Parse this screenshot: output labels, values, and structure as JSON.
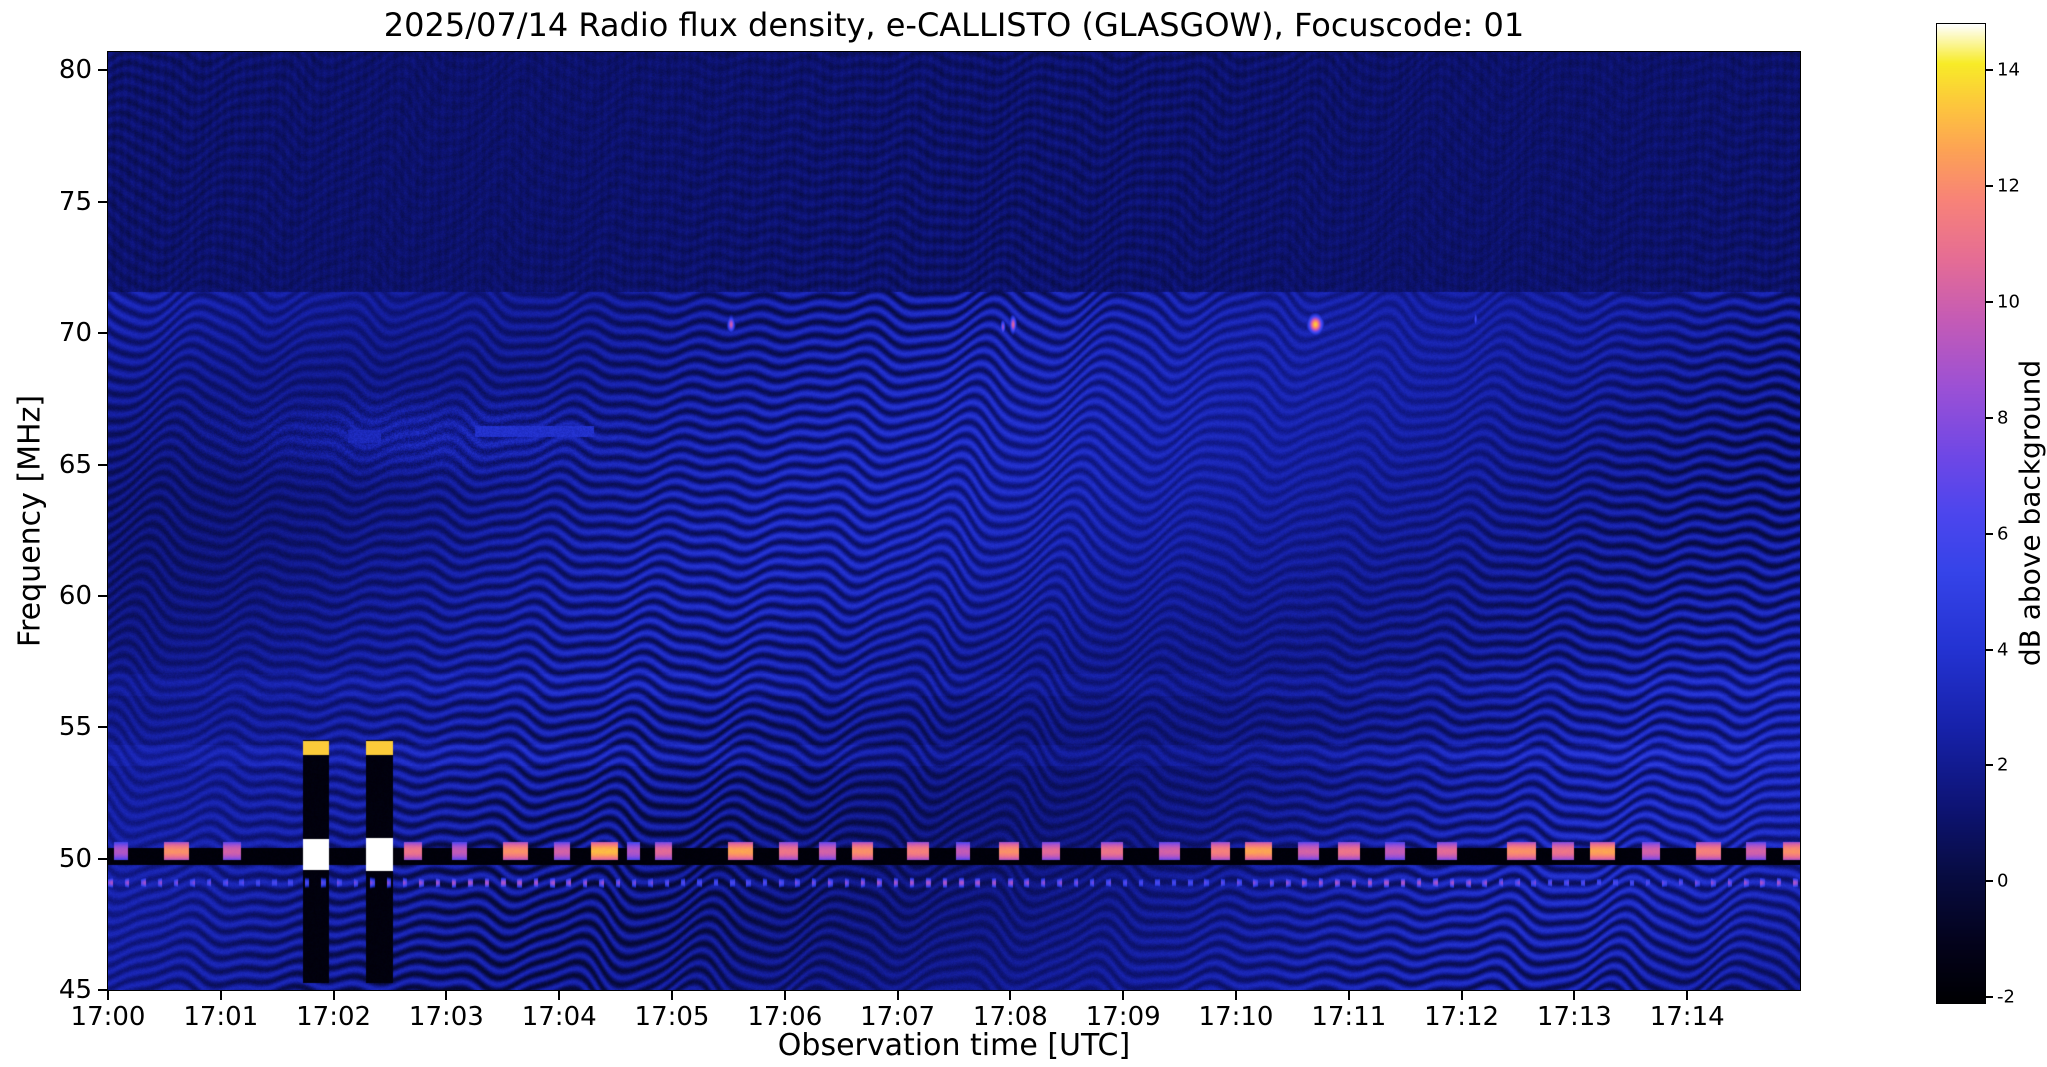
{
  "chart_data": {
    "type": "heatmap",
    "title": "2025/07/14  Radio flux density, e-CALLISTO (GLASGOW), Focuscode: 01",
    "xlabel": "Observation time [UTC]",
    "ylabel": "Frequency [MHz]",
    "x_tick_labels": [
      "17:00",
      "17:01",
      "17:02",
      "17:03",
      "17:04",
      "17:05",
      "17:06",
      "17:07",
      "17:08",
      "17:09",
      "17:10",
      "17:11",
      "17:12",
      "17:13",
      "17:14"
    ],
    "x_tick_minutes": [
      0,
      1,
      2,
      3,
      4,
      5,
      6,
      7,
      8,
      9,
      10,
      11,
      12,
      13,
      14
    ],
    "x_range_minutes": [
      0,
      15
    ],
    "y_ticks": [
      45,
      50,
      55,
      60,
      65,
      70,
      75,
      80
    ],
    "y_range_mhz": [
      45,
      80.7
    ],
    "y_axis_direction": "frequency increases upward",
    "grid": false,
    "colorbar": {
      "label": "dB above background",
      "ticks": [
        -2,
        0,
        2,
        4,
        6,
        8,
        10,
        12,
        14
      ],
      "vmin": -2.1,
      "vmax": 14.8
    },
    "colormap_stops": [
      [
        0.0,
        "#000003"
      ],
      [
        0.06,
        "#04031c"
      ],
      [
        0.13,
        "#080c42"
      ],
      [
        0.2,
        "#0e1475"
      ],
      [
        0.28,
        "#1722aa"
      ],
      [
        0.36,
        "#2433d2"
      ],
      [
        0.44,
        "#3644e9"
      ],
      [
        0.5,
        "#4d46ee"
      ],
      [
        0.56,
        "#7048e6"
      ],
      [
        0.63,
        "#9d51d5"
      ],
      [
        0.7,
        "#c65cb5"
      ],
      [
        0.76,
        "#e66d95"
      ],
      [
        0.82,
        "#f88379"
      ],
      [
        0.87,
        "#fda256"
      ],
      [
        0.92,
        "#fdc93c"
      ],
      [
        0.96,
        "#f8ec28"
      ],
      [
        1.0,
        "#ffffff"
      ]
    ],
    "features": {
      "background_level_db": 1.9,
      "fringe_amplitude_db": 1.5,
      "upper_band_start_mhz": 71.6,
      "upper_band_level_db": 1.05,
      "light_bands": [
        [
          53.55,
          54.35,
          0.5
        ],
        [
          56.2,
          57.05,
          0.35
        ]
      ],
      "haze_66mhz": {
        "x_center": 2.7,
        "f_center": 66.1,
        "x_radius": 1.4,
        "f_radius": 1.2,
        "boost_db": 1.0
      },
      "streak_66mhz": {
        "x_min": 3.25,
        "x_max": 4.3,
        "f_low": 66.05,
        "f_high": 66.5,
        "level_db": 3.8
      },
      "spot_66mhz": {
        "x_min": 2.12,
        "x_max": 2.42,
        "f_low": 65.85,
        "f_high": 66.35,
        "level_db": 3.2
      },
      "rfi_channel": {
        "f_low": 49.78,
        "f_high": 50.42,
        "level_db": -1.9,
        "blocks_f_low": 49.98,
        "blocks_f_high": 50.65,
        "blocks_f_center": 50.3
      },
      "bright_blocks_50mhz": [
        [
          0.05,
          0.18,
          9
        ],
        [
          0.5,
          0.72,
          12
        ],
        [
          1.02,
          1.18,
          10
        ],
        [
          2.62,
          2.78,
          11
        ],
        [
          3.05,
          3.18,
          9.5
        ],
        [
          3.5,
          3.72,
          12
        ],
        [
          3.95,
          4.1,
          10
        ],
        [
          4.28,
          4.52,
          13
        ],
        [
          4.6,
          4.72,
          9
        ],
        [
          4.85,
          5.0,
          10.5
        ],
        [
          5.5,
          5.72,
          12.5
        ],
        [
          5.95,
          6.12,
          11
        ],
        [
          6.3,
          6.45,
          10
        ],
        [
          6.6,
          6.78,
          12
        ],
        [
          7.08,
          7.28,
          11.5
        ],
        [
          7.52,
          7.64,
          9.5
        ],
        [
          7.9,
          8.08,
          12
        ],
        [
          8.28,
          8.44,
          10.5
        ],
        [
          8.8,
          9.0,
          11
        ],
        [
          9.32,
          9.5,
          10
        ],
        [
          9.78,
          9.95,
          11.5
        ],
        [
          10.08,
          10.32,
          12.5
        ],
        [
          10.55,
          10.74,
          10
        ],
        [
          10.9,
          11.1,
          11
        ],
        [
          11.32,
          11.5,
          9.5
        ],
        [
          11.78,
          11.96,
          10.5
        ],
        [
          12.4,
          12.66,
          12
        ],
        [
          12.8,
          13.0,
          11
        ],
        [
          13.14,
          13.36,
          12.5
        ],
        [
          13.6,
          13.76,
          10
        ],
        [
          14.08,
          14.3,
          11.5
        ],
        [
          14.52,
          14.7,
          10
        ],
        [
          14.85,
          15.0,
          12
        ]
      ],
      "burst_columns": [
        {
          "x_min": 1.73,
          "x_max": 1.96,
          "f_low": 45.3,
          "f_high": 54.55,
          "level_db": -1.8,
          "white_blocks": [
            [
              53.95,
              54.5,
              13.5
            ],
            [
              49.6,
              50.75,
              15
            ]
          ]
        },
        {
          "x_min": 2.29,
          "x_max": 2.53,
          "f_low": 45.3,
          "f_high": 54.55,
          "level_db": -1.8,
          "white_blocks": [
            [
              53.95,
              54.5,
              13.5
            ],
            [
              49.55,
              50.8,
              15
            ]
          ]
        }
      ],
      "dotted_line": {
        "f_mhz": 49.1,
        "spacing_min": 0.145,
        "dot_width_min": 0.04,
        "level_db": 7.5
      },
      "point_sources": [
        {
          "x": 5.52,
          "f": 70.35,
          "w": 0.035,
          "h": 0.32,
          "level_db": 10
        },
        {
          "x": 7.93,
          "f": 70.25,
          "w": 0.022,
          "h": 0.28,
          "level_db": 8.5
        },
        {
          "x": 8.02,
          "f": 70.35,
          "w": 0.03,
          "h": 0.35,
          "level_db": 10.5
        },
        {
          "x": 10.7,
          "f": 70.35,
          "w": 0.07,
          "h": 0.38,
          "level_db": 13.5
        },
        {
          "x": 12.12,
          "f": 70.55,
          "w": 0.015,
          "h": 0.3,
          "level_db": 6
        }
      ]
    }
  }
}
